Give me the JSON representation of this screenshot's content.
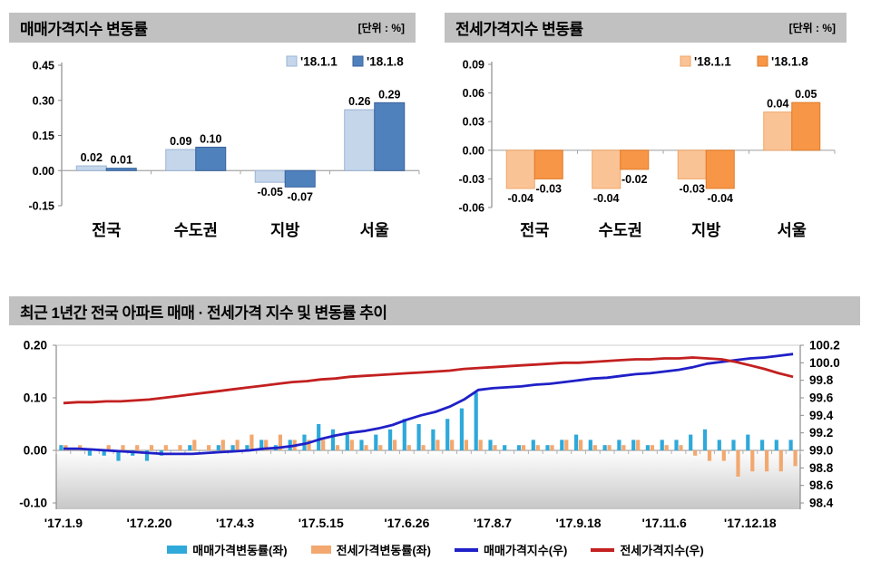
{
  "colors": {
    "header_bg": "#c1c1c1",
    "axis": "#8c8c8c",
    "zero_line": "#a6a6a6",
    "plot_gradient_top": "#ffffff",
    "plot_gradient_bottom": "#c7c7c7"
  },
  "chart_data": [
    {
      "id": "sales-change",
      "type": "bar",
      "title": "매매가격지수 변동률",
      "unit_label": "[단위 : %]",
      "categories": [
        "전국",
        "수도권",
        "지방",
        "서울"
      ],
      "series": [
        {
          "name": "'18.1.1",
          "color": "#c5d6eb",
          "border": "#9ab4d6",
          "values": [
            0.02,
            0.09,
            -0.05,
            0.26
          ]
        },
        {
          "name": "'18.1.8",
          "color": "#4f81bd",
          "border": "#38629c",
          "values": [
            0.01,
            0.1,
            -0.07,
            0.29
          ]
        }
      ],
      "ylim": [
        -0.15,
        0.45
      ],
      "yticks": [
        0.45,
        0.3,
        0.15,
        0.0,
        -0.15
      ],
      "legend_position": "top-right",
      "grid": false
    },
    {
      "id": "jeonse-change",
      "type": "bar",
      "title": "전세가격지수 변동률",
      "unit_label": "[단위 : %]",
      "categories": [
        "전국",
        "수도권",
        "지방",
        "서울"
      ],
      "series": [
        {
          "name": "'18.1.1",
          "color": "#fac396",
          "border": "#f0a567",
          "values": [
            -0.04,
            -0.04,
            -0.03,
            0.04
          ]
        },
        {
          "name": "'18.1.8",
          "color": "#f79646",
          "border": "#e07b28",
          "values": [
            -0.03,
            -0.02,
            -0.04,
            0.05
          ]
        }
      ],
      "ylim": [
        -0.06,
        0.09
      ],
      "yticks": [
        0.09,
        0.06,
        0.03,
        0.0,
        -0.03,
        -0.06
      ],
      "legend_position": "top-right",
      "grid": false
    },
    {
      "id": "trend",
      "type": "combo",
      "title": "최근 1년간 전국 아파트 매매 · 전세가격 지수 및 변동률 추이",
      "x_tick_labels": [
        "'17.1.9",
        "'17.2.20",
        "'17.4.3",
        "'17.5.15",
        "'17.6.26",
        "'17.8.7",
        "'17.9.18",
        "'17.11.6",
        "'17.12.18"
      ],
      "x_tick_indices": [
        0,
        6,
        12,
        18,
        24,
        30,
        36,
        42,
        48
      ],
      "left_ylim": [
        -0.1,
        0.2
      ],
      "left_yticks": [
        0.2,
        0.1,
        0.0,
        -0.1
      ],
      "right_ylim": [
        98.4,
        100.2
      ],
      "right_yticks": [
        100.2,
        100.0,
        99.8,
        99.6,
        99.4,
        99.2,
        99.0,
        98.8,
        98.6,
        98.4
      ],
      "grid": false,
      "legend_position": "bottom",
      "bar_series": [
        {
          "name": "매매가격변동률(좌)",
          "axis": "left",
          "color": "#2ea9da",
          "values": [
            0.01,
            0.0,
            -0.01,
            -0.01,
            -0.02,
            -0.01,
            -0.02,
            -0.01,
            0.0,
            0.01,
            0.0,
            0.01,
            0.01,
            0.01,
            0.02,
            0.01,
            0.02,
            0.03,
            0.05,
            0.04,
            0.03,
            0.02,
            0.03,
            0.04,
            0.06,
            0.05,
            0.04,
            0.06,
            0.08,
            0.11,
            0.02,
            0.01,
            0.01,
            0.02,
            0.01,
            0.02,
            0.03,
            0.02,
            0.01,
            0.02,
            0.02,
            0.01,
            0.02,
            0.02,
            0.03,
            0.04,
            0.02,
            0.02,
            0.03,
            0.02,
            0.02,
            0.02
          ]
        },
        {
          "name": "전세가격변동률(좌)",
          "axis": "left",
          "color": "#f2a86f",
          "values": [
            0.01,
            0.01,
            0.0,
            0.01,
            0.01,
            0.01,
            0.01,
            0.01,
            0.01,
            0.02,
            0.01,
            0.02,
            0.02,
            0.03,
            0.02,
            0.03,
            0.02,
            0.02,
            0.02,
            0.01,
            0.02,
            0.01,
            0.01,
            0.02,
            0.01,
            0.01,
            0.02,
            0.02,
            0.02,
            0.02,
            0.01,
            0.0,
            0.01,
            0.01,
            0.01,
            0.02,
            0.02,
            0.01,
            0.01,
            0.01,
            0.02,
            0.01,
            0.01,
            0.01,
            -0.01,
            -0.02,
            -0.02,
            -0.05,
            -0.04,
            -0.04,
            -0.04,
            -0.03
          ]
        }
      ],
      "line_series": [
        {
          "name": "매매가격지수(우)",
          "axis": "right",
          "color": "#2020c8",
          "values": [
            99.02,
            99.02,
            99.01,
            99.0,
            98.99,
            98.98,
            98.97,
            98.96,
            98.96,
            98.96,
            98.97,
            98.98,
            98.99,
            99.0,
            99.02,
            99.03,
            99.05,
            99.08,
            99.13,
            99.17,
            99.2,
            99.22,
            99.25,
            99.29,
            99.35,
            99.4,
            99.44,
            99.5,
            99.58,
            99.69,
            99.71,
            99.72,
            99.73,
            99.75,
            99.76,
            99.78,
            99.8,
            99.82,
            99.83,
            99.85,
            99.87,
            99.88,
            99.9,
            99.92,
            99.95,
            99.99,
            100.01,
            100.03,
            100.05,
            100.06,
            100.08,
            100.1
          ]
        },
        {
          "name": "전세가격지수(우)",
          "axis": "right",
          "color": "#c32020",
          "values": [
            99.54,
            99.55,
            99.55,
            99.56,
            99.56,
            99.57,
            99.58,
            99.6,
            99.62,
            99.64,
            99.66,
            99.68,
            99.7,
            99.72,
            99.74,
            99.76,
            99.78,
            99.79,
            99.81,
            99.82,
            99.84,
            99.85,
            99.86,
            99.87,
            99.88,
            99.89,
            99.9,
            99.91,
            99.93,
            99.94,
            99.95,
            99.96,
            99.97,
            99.98,
            99.99,
            100.0,
            100.0,
            100.01,
            100.02,
            100.03,
            100.04,
            100.04,
            100.05,
            100.05,
            100.06,
            100.05,
            100.04,
            100.01,
            99.97,
            99.93,
            99.88,
            99.84
          ]
        }
      ]
    }
  ]
}
